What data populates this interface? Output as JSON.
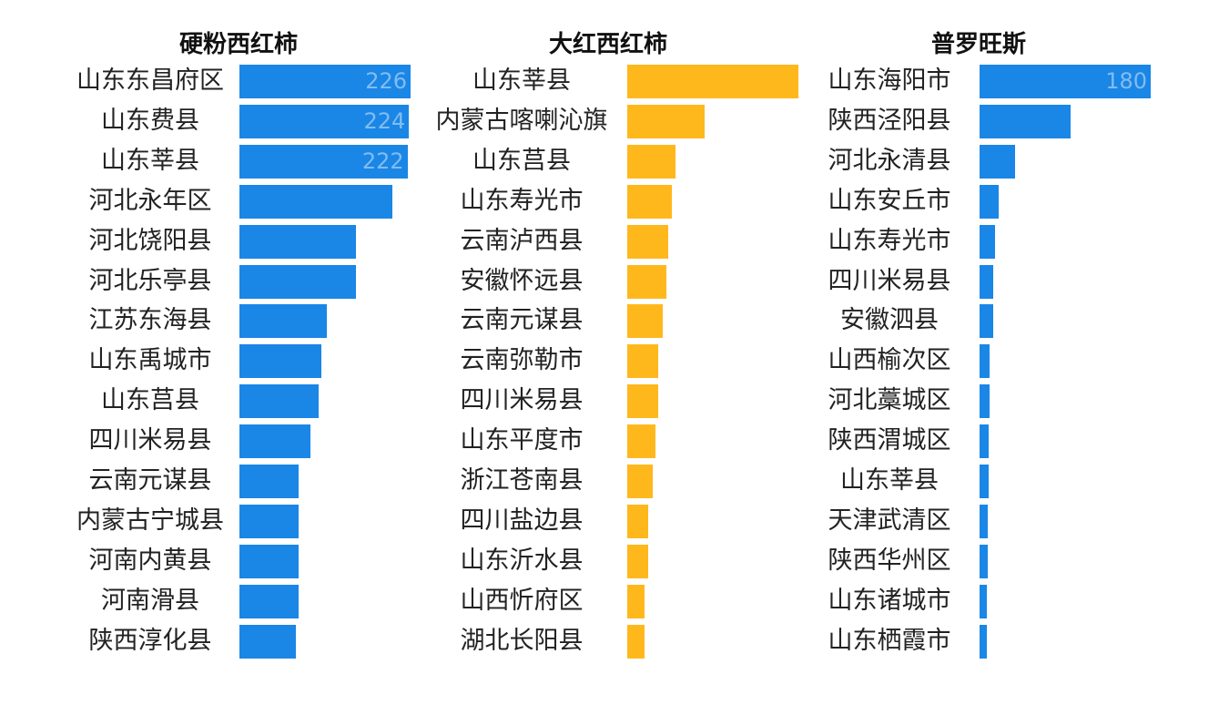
{
  "chart_data": [
    {
      "type": "bar",
      "orientation": "horizontal",
      "title": "硬粉西红柿",
      "color": "#1a86e6",
      "categories": [
        "山东东昌府区",
        "山东费县",
        "山东莘县",
        "河北永年区",
        "河北饶阳县",
        "河北乐亭县",
        "江苏东海县",
        "山东禹城市",
        "山东莒县",
        "四川米易县",
        "云南元谋县",
        "内蒙古宁城县",
        "河南内黄县",
        "河南滑县",
        "陕西淳化县"
      ],
      "values": [
        226,
        224,
        222,
        202,
        154,
        154,
        115,
        108,
        105,
        94,
        78,
        78,
        78,
        78,
        75
      ],
      "data_labels": [
        "226",
        "224",
        "222",
        "",
        "",
        "",
        "",
        "",
        "",
        "",
        "",
        "",
        "",
        "",
        ""
      ]
    },
    {
      "type": "bar",
      "orientation": "horizontal",
      "title": "大红西红柿",
      "color": "#ffb81c",
      "categories": [
        "山东莘县",
        "内蒙古喀喇沁旗",
        "山东莒县",
        "山东寿光市",
        "云南泸西县",
        "安徽怀远县",
        "云南元谋县",
        "云南弥勒市",
        "四川米易县",
        "山东平度市",
        "浙江苍南县",
        "四川盐边县",
        "山东沂水县",
        "山西忻府区",
        "湖北长阳县"
      ],
      "values": [
        100,
        45,
        28,
        26,
        24,
        23,
        21,
        18,
        18,
        16.5,
        15,
        12,
        12,
        10,
        10
      ],
      "data_labels": [
        "",
        "",
        "",
        "",
        "",
        "",
        "",
        "",
        "",
        "",
        "",
        "",
        "",
        "",
        ""
      ]
    },
    {
      "type": "bar",
      "orientation": "horizontal",
      "title": "普罗旺斯",
      "color": "#1a86e6",
      "categories": [
        "山东海阳市",
        "陕西泾阳县",
        "河北永清县",
        "山东安丘市",
        "山东寿光市",
        "四川米易县",
        "安徽泗县",
        "山西榆次区",
        "河北藁城区",
        "陕西渭城区",
        "山东莘县",
        "天津武清区",
        "陕西华州区",
        "山东诸城市",
        "山东栖霞市"
      ],
      "values": [
        180,
        96,
        37,
        20,
        16,
        14,
        14,
        11,
        11,
        10,
        10,
        9,
        9,
        8,
        8
      ],
      "data_labels": [
        "180",
        "",
        "",
        "",
        "",
        "",
        "",
        "",
        "",
        "",
        "",
        "",
        "",
        "",
        ""
      ]
    }
  ]
}
